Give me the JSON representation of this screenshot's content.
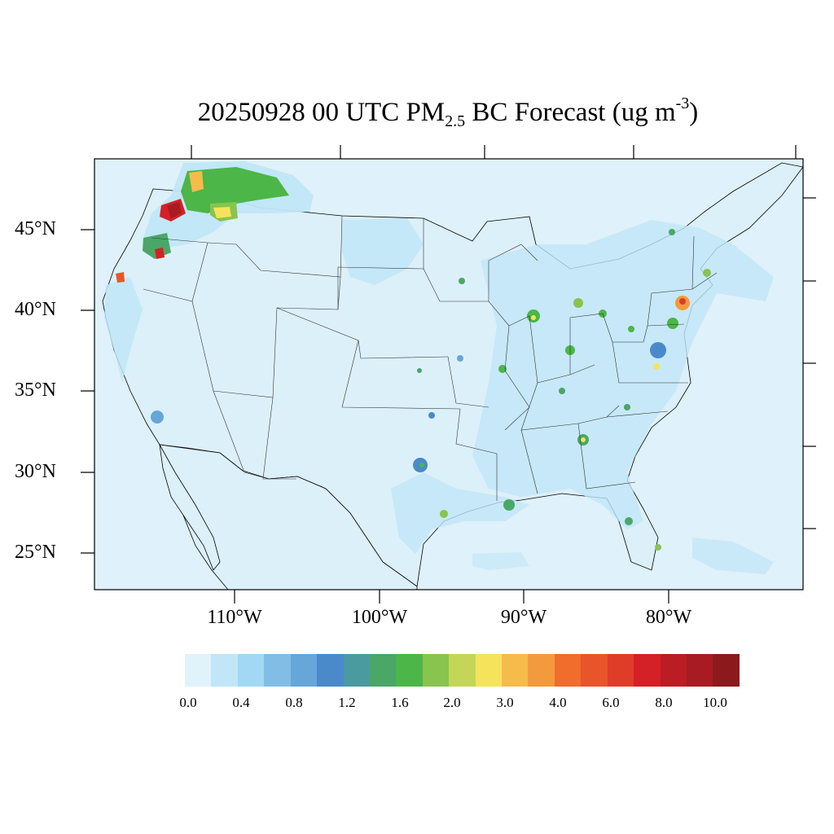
{
  "title": {
    "prefix": "20250928 00 UTC PM",
    "subscript": "2.5",
    "middle": " BC Forecast (ug m",
    "superscript": "-3",
    "suffix": ")"
  },
  "map": {
    "background_color": "#dff1fa",
    "lat_labels": [
      "45°N",
      "40°N",
      "35°N",
      "30°N",
      "25°N"
    ],
    "lon_labels": [
      "110°W",
      "100°W",
      "90°W",
      "80°W"
    ]
  },
  "colorbar": {
    "colors": [
      "#e0f3fb",
      "#c0e6f7",
      "#a2d8f4",
      "#82bde5",
      "#66a6d9",
      "#4a8acb",
      "#4a9ba0",
      "#4aa767",
      "#4cb648",
      "#88c44e",
      "#c3d658",
      "#f5e35c",
      "#f6bb4b",
      "#f49a3e",
      "#f06d2b",
      "#e9552a",
      "#e03c2a",
      "#d42027",
      "#ba1d23",
      "#a81b22",
      "#8c1a1c"
    ],
    "labels": [
      "0.0",
      "0.4",
      "0.8",
      "1.2",
      "1.6",
      "2.0",
      "3.0",
      "4.0",
      "6.0",
      "8.0",
      "10.0"
    ]
  }
}
